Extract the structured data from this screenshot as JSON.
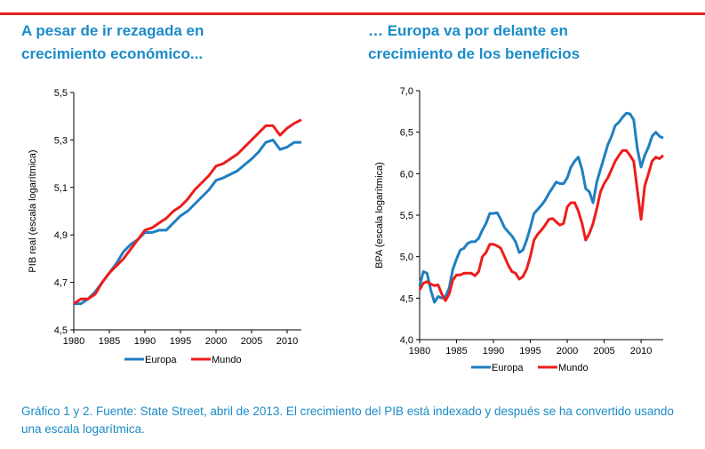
{
  "colors": {
    "accent_line": "#e8201f",
    "title": "#1b8bc8",
    "europa": "#1f7fc0",
    "mundo": "#ee1c1c"
  },
  "titles": {
    "left": [
      "A pesar de ir rezagada en",
      "crecimiento económico..."
    ],
    "right": [
      "… Europa va por delante en",
      "crecimiento de los beneficios"
    ]
  },
  "caption": "Gráfico 1 y 2. Fuente: State Street, abril de 2013. El crecimiento del PIB está indexado y después se ha convertido usando una escala logarítmica.",
  "chart_data": [
    {
      "type": "line",
      "ylabel": "PIB real (escala logarítmica)",
      "xlabel": "",
      "ylim": [
        4.5,
        5.5
      ],
      "xlim": [
        1980,
        2012
      ],
      "yticks": [
        "4,5",
        "4,7",
        "4,9",
        "5,1",
        "5,3",
        "5,5"
      ],
      "ytick_values": [
        4.5,
        4.7,
        4.9,
        5.1,
        5.3,
        5.5
      ],
      "xticks": [
        "1980",
        "1985",
        "1990",
        "1995",
        "2000",
        "2005",
        "2010"
      ],
      "legend": "bottom",
      "x": [
        1980,
        1981,
        1982,
        1983,
        1984,
        1985,
        1986,
        1987,
        1988,
        1989,
        1990,
        1991,
        1992,
        1993,
        1994,
        1995,
        1996,
        1997,
        1998,
        1999,
        2000,
        2001,
        2002,
        2003,
        2004,
        2005,
        2006,
        2007,
        2008,
        2009,
        2010,
        2011,
        2012
      ],
      "series": [
        {
          "name": "Europa",
          "values": [
            4.61,
            4.61,
            4.63,
            4.66,
            4.7,
            4.74,
            4.78,
            4.83,
            4.86,
            4.88,
            4.91,
            4.91,
            4.92,
            4.92,
            4.95,
            4.98,
            5.0,
            5.03,
            5.06,
            5.09,
            5.13,
            5.14,
            5.155,
            5.17,
            5.195,
            5.22,
            5.25,
            5.29,
            5.3,
            5.26,
            5.27,
            5.29,
            5.29
          ]
        },
        {
          "name": "Mundo",
          "values": [
            4.61,
            4.63,
            4.63,
            4.65,
            4.7,
            4.74,
            4.77,
            4.8,
            4.84,
            4.88,
            4.92,
            4.93,
            4.95,
            4.97,
            5.0,
            5.02,
            5.05,
            5.09,
            5.12,
            5.15,
            5.19,
            5.2,
            5.22,
            5.24,
            5.27,
            5.3,
            5.33,
            5.36,
            5.36,
            5.32,
            5.35,
            5.37,
            5.385
          ]
        }
      ]
    },
    {
      "type": "line",
      "ylabel": "BPA (escala logarítmica)",
      "xlabel": "",
      "ylim": [
        4.0,
        7.0
      ],
      "xlim": [
        1980,
        2013
      ],
      "yticks": [
        "4,0",
        "4,5",
        "5,0",
        "5,5",
        "6,0",
        "6,5",
        "7,0"
      ],
      "ytick_values": [
        4.0,
        4.5,
        5.0,
        5.5,
        6.0,
        6.5,
        7.0
      ],
      "xticks": [
        "1980",
        "1985",
        "1990",
        "1995",
        "2000",
        "2005",
        "2010"
      ],
      "legend": "bottom",
      "x": [
        1980,
        1980.5,
        1981,
        1981.5,
        1982,
        1982.5,
        1983,
        1983.5,
        1984,
        1984.5,
        1985,
        1985.5,
        1986,
        1986.5,
        1987,
        1987.5,
        1988,
        1988.5,
        1989,
        1989.5,
        1990,
        1990.5,
        1991,
        1991.5,
        1992,
        1992.5,
        1993,
        1993.5,
        1994,
        1994.5,
        1995,
        1995.5,
        1996,
        1996.5,
        1997,
        1997.5,
        1998,
        1998.5,
        1999,
        1999.5,
        2000,
        2000.5,
        2001,
        2001.5,
        2002,
        2002.5,
        2003,
        2003.5,
        2004,
        2004.5,
        2005,
        2005.5,
        2006,
        2006.5,
        2007,
        2007.5,
        2008,
        2008.5,
        2009,
        2009.5,
        2010,
        2010.5,
        2011,
        2011.5,
        2012,
        2012.5,
        2013
      ],
      "series": [
        {
          "name": "Europa",
          "values": [
            4.65,
            4.82,
            4.8,
            4.6,
            4.45,
            4.52,
            4.5,
            4.52,
            4.62,
            4.85,
            4.97,
            5.08,
            5.1,
            5.16,
            5.18,
            5.18,
            5.22,
            5.32,
            5.4,
            5.52,
            5.52,
            5.53,
            5.45,
            5.35,
            5.3,
            5.25,
            5.18,
            5.05,
            5.08,
            5.2,
            5.35,
            5.52,
            5.57,
            5.62,
            5.68,
            5.76,
            5.83,
            5.9,
            5.88,
            5.88,
            5.95,
            6.08,
            6.15,
            6.2,
            6.05,
            5.82,
            5.78,
            5.65,
            5.9,
            6.05,
            6.2,
            6.35,
            6.45,
            6.58,
            6.62,
            6.68,
            6.73,
            6.72,
            6.65,
            6.3,
            6.08,
            6.22,
            6.32,
            6.45,
            6.5,
            6.45,
            6.43
          ]
        },
        {
          "name": "Mundo",
          "values": [
            4.6,
            4.68,
            4.7,
            4.67,
            4.65,
            4.66,
            4.55,
            4.47,
            4.55,
            4.72,
            4.78,
            4.78,
            4.8,
            4.8,
            4.8,
            4.77,
            4.82,
            5.0,
            5.05,
            5.15,
            5.15,
            5.13,
            5.1,
            5.0,
            4.9,
            4.82,
            4.8,
            4.73,
            4.76,
            4.85,
            5.0,
            5.2,
            5.27,
            5.32,
            5.38,
            5.45,
            5.46,
            5.42,
            5.38,
            5.4,
            5.6,
            5.65,
            5.65,
            5.55,
            5.4,
            5.2,
            5.28,
            5.4,
            5.58,
            5.78,
            5.88,
            5.95,
            6.05,
            6.15,
            6.22,
            6.28,
            6.28,
            6.22,
            6.15,
            5.8,
            5.45,
            5.85,
            6.0,
            6.15,
            6.2,
            6.18,
            6.22
          ]
        }
      ]
    }
  ]
}
